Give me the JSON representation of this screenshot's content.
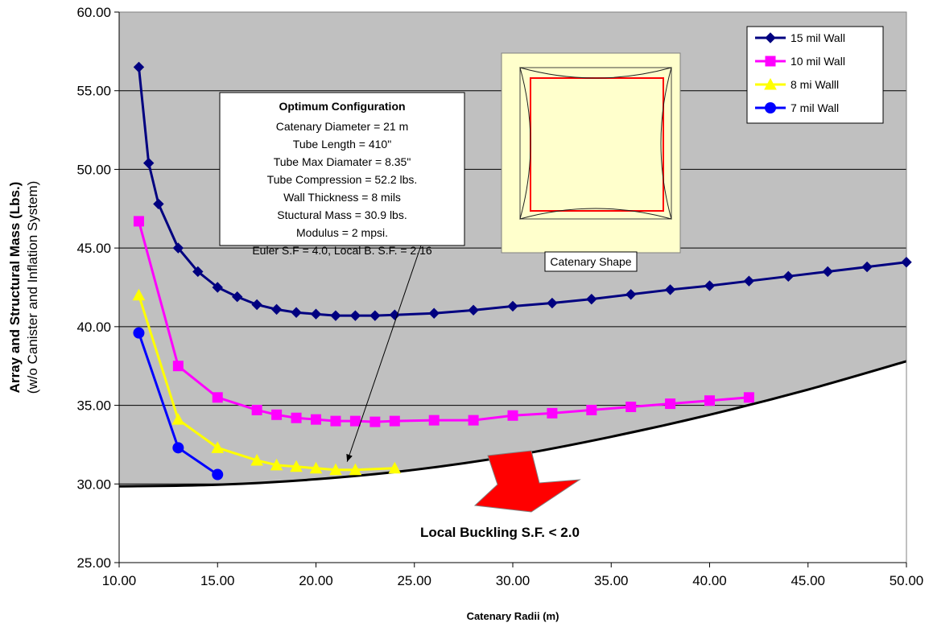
{
  "chart_data": {
    "type": "line",
    "title": "",
    "xlabel": "Catenary Radii (m)",
    "ylabel": "Array and Structural Mass (Lbs.)",
    "ylabel_sub": "(w/o Canister and Inflation System)",
    "xlim": [
      10,
      50
    ],
    "ylim": [
      25,
      60
    ],
    "x_ticks": [
      "10.00",
      "15.00",
      "20.00",
      "25.00",
      "30.00",
      "35.00",
      "40.00",
      "45.00",
      "50.00"
    ],
    "y_ticks": [
      "25.00",
      "30.00",
      "35.00",
      "40.00",
      "45.00",
      "50.00",
      "55.00",
      "60.00"
    ],
    "grid": "horizontal",
    "legend_position": "top-right",
    "colors": {
      "plot_bg": "#c0c0c0",
      "below_region": "#ffffff",
      "boundary": "#000000",
      "arrow": "#ff0000",
      "inset_bg": "#ffffcc"
    },
    "series": [
      {
        "name": "15 mil Wall",
        "color": "#000080",
        "marker": "diamond",
        "x": [
          11,
          11.5,
          12,
          13,
          14,
          15,
          16,
          17,
          18,
          19,
          20,
          21,
          22,
          23,
          24,
          26,
          28,
          30,
          32,
          34,
          36,
          38,
          40,
          42,
          44,
          46,
          48,
          50
        ],
        "y": [
          56.5,
          50.4,
          47.8,
          45.0,
          43.5,
          42.5,
          41.9,
          41.4,
          41.1,
          40.9,
          40.8,
          40.7,
          40.7,
          40.7,
          40.75,
          40.85,
          41.05,
          41.3,
          41.5,
          41.75,
          42.05,
          42.35,
          42.6,
          42.9,
          43.2,
          43.5,
          43.8,
          44.1
        ]
      },
      {
        "name": "10 mil Wall",
        "color": "#ff00ff",
        "marker": "square",
        "x": [
          11,
          13,
          15,
          17,
          18,
          19,
          20,
          21,
          22,
          23,
          24,
          26,
          28,
          30,
          32,
          34,
          36,
          38,
          40,
          42
        ],
        "y": [
          46.7,
          37.5,
          35.5,
          34.7,
          34.4,
          34.2,
          34.1,
          34.0,
          34.0,
          33.95,
          34.0,
          34.05,
          34.05,
          34.35,
          34.5,
          34.7,
          34.9,
          35.1,
          35.3,
          35.5
        ]
      },
      {
        "name": "8 mi Walll",
        "color": "#ffff00",
        "marker": "triangle",
        "x": [
          11,
          13,
          15,
          17,
          18,
          19,
          20,
          21,
          22,
          24
        ],
        "y": [
          42.0,
          34.1,
          32.3,
          31.5,
          31.2,
          31.1,
          31.0,
          30.9,
          30.9,
          31.0
        ]
      },
      {
        "name": "7 mil Wall",
        "color": "#0000ff",
        "marker": "circle",
        "x": [
          11,
          13,
          15
        ],
        "y": [
          39.6,
          32.3,
          30.6
        ]
      }
    ],
    "boundary": {
      "x": [
        10,
        15,
        20,
        25,
        30,
        35,
        40,
        45,
        50
      ],
      "y": [
        29.85,
        29.95,
        30.3,
        30.9,
        31.8,
        33.0,
        34.4,
        36.0,
        37.8
      ]
    },
    "annotations": {
      "box_title": "Optimum Configuration",
      "box_lines": [
        "Catenary Diameter = 21 m",
        "Tube Length = 410\"",
        "Tube Max Diamater = 8.35\"",
        "Tube Compression = 52.2 lbs.",
        "Wall Thickness = 8 mils",
        "Stuctural Mass = 30.9 lbs.",
        "Modulus = 2 mpsi.",
        "Euler S.F = 4.0, Local B. S.F. = 2.16"
      ],
      "pointer_target": [
        21.5,
        30.9
      ],
      "inset_caption": "Catenary Shape",
      "region_label": "Local Buckling S.F. < 2.0"
    }
  }
}
